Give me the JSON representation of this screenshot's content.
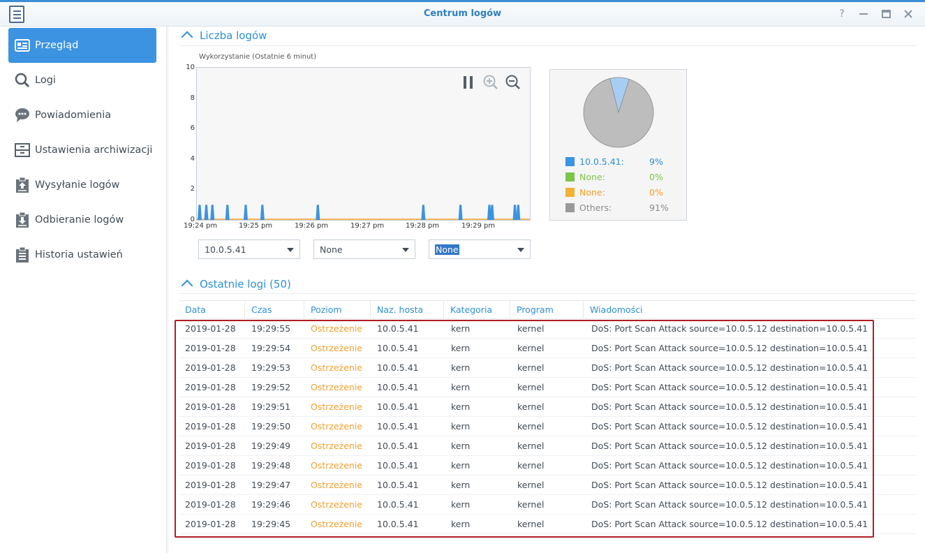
{
  "window": {
    "title": "Centrum logów"
  },
  "sidebar": {
    "items": [
      {
        "label": "Przegląd",
        "icon": "overview-card-icon",
        "active": true
      },
      {
        "label": "Logi",
        "icon": "search-icon",
        "active": false
      },
      {
        "label": "Powiadomienia",
        "icon": "speech-bubble-icon",
        "active": false
      },
      {
        "label": "Ustawienia archiwizacji",
        "icon": "archive-drawer-icon",
        "active": false
      },
      {
        "label": "Wysyłanie logów",
        "icon": "clipboard-upload-icon",
        "active": false
      },
      {
        "label": "Odbieranie logów",
        "icon": "clipboard-download-icon",
        "active": false
      },
      {
        "label": "Historia ustawień",
        "icon": "clipboard-list-icon",
        "active": false
      }
    ]
  },
  "log_count": {
    "heading": "Liczba logów",
    "chart_caption": "Wykorzystanie (Ostatnie 6 minut)",
    "selects": [
      "10.0.5.41",
      "None",
      "None"
    ],
    "pie_legend": [
      {
        "label": "10.0.5.41:",
        "value": "9%",
        "color": "#3b93e2"
      },
      {
        "label": "None:",
        "value": "0%",
        "color": "#7cc54a"
      },
      {
        "label": "None:",
        "value": "0%",
        "color": "#f2b233"
      },
      {
        "label": "Others:",
        "value": "91%",
        "color": "#9a9a9a"
      }
    ]
  },
  "chart_data": [
    {
      "type": "area",
      "title": "Wykorzystanie (Ostatnie 6 minut)",
      "x_tick_labels": [
        "19:24 pm",
        "19:25 pm",
        "19:26 pm",
        "19:27 pm",
        "19:28 pm",
        "19:29 pm"
      ],
      "ylim": [
        0,
        10
      ],
      "y_ticks": [
        0,
        2,
        4,
        6,
        8,
        10
      ],
      "series_color": "#3b93e2",
      "spike_minutes": [
        0.05,
        0.17,
        0.28,
        0.55,
        0.88,
        1.18,
        2.18,
        4.08,
        4.75,
        5.27,
        5.32,
        5.73,
        5.79
      ],
      "spike_value": 1
    },
    {
      "type": "pie",
      "labels": [
        "10.0.5.41",
        "None",
        "None",
        "Others"
      ],
      "values": [
        9,
        0,
        0,
        91
      ],
      "colors": [
        "#a8cdf2",
        "#7cc54a",
        "#f2b233",
        "#bdbdbd"
      ]
    }
  ],
  "recent_logs": {
    "heading": "Ostatnie logi (50)",
    "columns": [
      "Data",
      "Czas",
      "Poziom",
      "Naz. hosta",
      "Kategoria",
      "Program",
      "Wiadomości"
    ],
    "rows": [
      [
        "2019-01-28",
        "19:29:55",
        "Ostrzeżenie",
        "10.0.5.41",
        "kern",
        "kernel",
        "DoS: Port Scan Attack source=10.0.5.12 destination=10.0.5.41"
      ],
      [
        "2019-01-28",
        "19:29:54",
        "Ostrzeżenie",
        "10.0.5.41",
        "kern",
        "kernel",
        "DoS: Port Scan Attack source=10.0.5.12 destination=10.0.5.41"
      ],
      [
        "2019-01-28",
        "19:29:53",
        "Ostrzeżenie",
        "10.0.5.41",
        "kern",
        "kernel",
        "DoS: Port Scan Attack source=10.0.5.12 destination=10.0.5.41"
      ],
      [
        "2019-01-28",
        "19:29:52",
        "Ostrzeżenie",
        "10.0.5.41",
        "kern",
        "kernel",
        "DoS: Port Scan Attack source=10.0.5.12 destination=10.0.5.41"
      ],
      [
        "2019-01-28",
        "19:29:51",
        "Ostrzeżenie",
        "10.0.5.41",
        "kern",
        "kernel",
        "DoS: Port Scan Attack source=10.0.5.12 destination=10.0.5.41"
      ],
      [
        "2019-01-28",
        "19:29:50",
        "Ostrzeżenie",
        "10.0.5.41",
        "kern",
        "kernel",
        "DoS: Port Scan Attack source=10.0.5.12 destination=10.0.5.41"
      ],
      [
        "2019-01-28",
        "19:29:49",
        "Ostrzeżenie",
        "10.0.5.41",
        "kern",
        "kernel",
        "DoS: Port Scan Attack source=10.0.5.12 destination=10.0.5.41"
      ],
      [
        "2019-01-28",
        "19:29:48",
        "Ostrzeżenie",
        "10.0.5.41",
        "kern",
        "kernel",
        "DoS: Port Scan Attack source=10.0.5.12 destination=10.0.5.41"
      ],
      [
        "2019-01-28",
        "19:29:47",
        "Ostrzeżenie",
        "10.0.5.41",
        "kern",
        "kernel",
        "DoS: Port Scan Attack source=10.0.5.12 destination=10.0.5.41"
      ],
      [
        "2019-01-28",
        "19:29:46",
        "Ostrzeżenie",
        "10.0.5.41",
        "kern",
        "kernel",
        "DoS: Port Scan Attack source=10.0.5.12 destination=10.0.5.41"
      ],
      [
        "2019-01-28",
        "19:29:45",
        "Ostrzeżenie",
        "10.0.5.41",
        "kern",
        "kernel",
        "DoS: Port Scan Attack source=10.0.5.12 destination=10.0.5.41"
      ]
    ]
  }
}
